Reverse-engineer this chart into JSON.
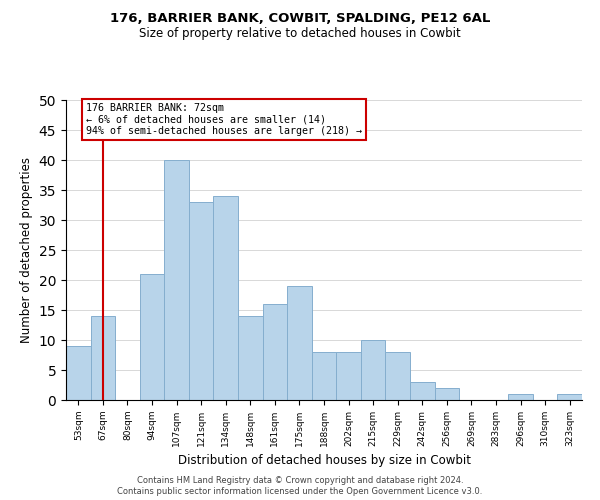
{
  "title": "176, BARRIER BANK, COWBIT, SPALDING, PE12 6AL",
  "subtitle": "Size of property relative to detached houses in Cowbit",
  "xlabel": "Distribution of detached houses by size in Cowbit",
  "ylabel": "Number of detached properties",
  "bin_labels": [
    "53sqm",
    "67sqm",
    "80sqm",
    "94sqm",
    "107sqm",
    "121sqm",
    "134sqm",
    "148sqm",
    "161sqm",
    "175sqm",
    "188sqm",
    "202sqm",
    "215sqm",
    "229sqm",
    "242sqm",
    "256sqm",
    "269sqm",
    "283sqm",
    "296sqm",
    "310sqm",
    "323sqm"
  ],
  "bar_heights": [
    9,
    14,
    0,
    21,
    40,
    33,
    34,
    14,
    16,
    19,
    8,
    8,
    10,
    8,
    3,
    2,
    0,
    0,
    1,
    0,
    1
  ],
  "bar_color": "#b8d4ea",
  "bar_edge_color": "#85aece",
  "red_line_bin": 1,
  "annotation_text": "176 BARRIER BANK: 72sqm\n← 6% of detached houses are smaller (14)\n94% of semi-detached houses are larger (218) →",
  "annotation_box_color": "#ffffff",
  "annotation_box_edge_color": "#cc0000",
  "ylim": [
    0,
    50
  ],
  "yticks": [
    0,
    5,
    10,
    15,
    20,
    25,
    30,
    35,
    40,
    45,
    50
  ],
  "footer1": "Contains HM Land Registry data © Crown copyright and database right 2024.",
  "footer2": "Contains public sector information licensed under the Open Government Licence v3.0.",
  "background_color": "#ffffff",
  "grid_color": "#d8d8d8"
}
